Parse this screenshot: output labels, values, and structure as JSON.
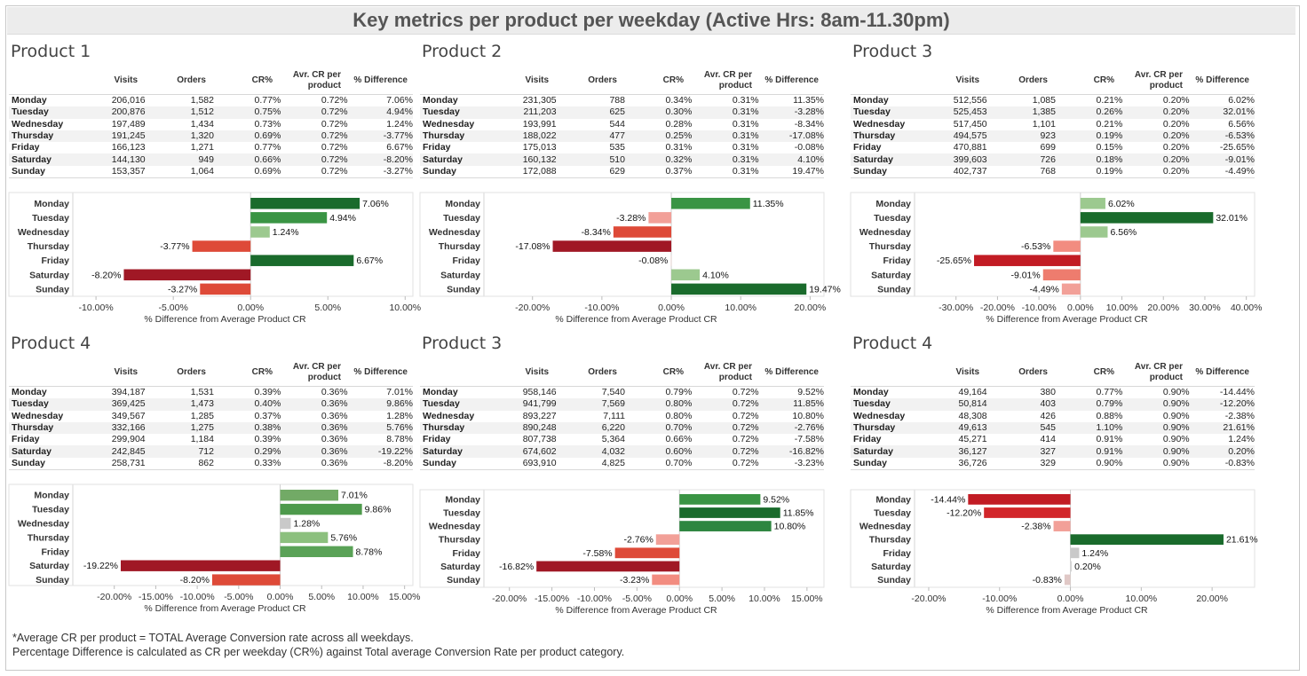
{
  "title": "Key metrics per product per weekday (Active Hrs: 8am-11.30pm)",
  "headers": {
    "visits": "Visits",
    "orders": "Orders",
    "cr": "CR%",
    "avg_cr_1": "Avr. CR per",
    "avg_cr_2": "product",
    "diff": "% Difference"
  },
  "axis_label": "% Difference from Average Product CR",
  "colors": {
    "dark_green": "#1a6b2c",
    "green": "#3a9444",
    "light_green": "#9cc98f",
    "dark_red": "#a01825",
    "red": "#de4a38",
    "light_red": "#f2a098",
    "grey": "#c9c9c9"
  },
  "footnotes": [
    "*Average CR per product = TOTAL Average Conversion rate across all weekdays.",
    "Percentage Difference is calculated as CR per weekday (CR%) against Total average Conversion Rate per product category."
  ],
  "panels": [
    {
      "name": "Product 1",
      "rows": [
        {
          "day": "Monday",
          "visits": "206,016",
          "orders": "1,582",
          "cr": "0.77%",
          "avg": "0.72%",
          "diff": "7.06%"
        },
        {
          "day": "Tuesday",
          "visits": "200,876",
          "orders": "1,512",
          "cr": "0.75%",
          "avg": "0.72%",
          "diff": "4.94%"
        },
        {
          "day": "Wednesday",
          "visits": "197,489",
          "orders": "1,434",
          "cr": "0.73%",
          "avg": "0.72%",
          "diff": "1.24%"
        },
        {
          "day": "Thursday",
          "visits": "191,245",
          "orders": "1,320",
          "cr": "0.69%",
          "avg": "0.72%",
          "diff": "-3.77%"
        },
        {
          "day": "Friday",
          "visits": "166,123",
          "orders": "1,271",
          "cr": "0.77%",
          "avg": "0.72%",
          "diff": "6.67%"
        },
        {
          "day": "Saturday",
          "visits": "144,130",
          "orders": "949",
          "cr": "0.66%",
          "avg": "0.72%",
          "diff": "-8.20%"
        },
        {
          "day": "Sunday",
          "visits": "153,357",
          "orders": "1,064",
          "cr": "0.69%",
          "avg": "0.72%",
          "diff": "-3.27%"
        }
      ]
    },
    {
      "name": "Product 2",
      "rows": [
        {
          "day": "Monday",
          "visits": "231,305",
          "orders": "788",
          "cr": "0.34%",
          "avg": "0.31%",
          "diff": "11.35%"
        },
        {
          "day": "Tuesday",
          "visits": "211,203",
          "orders": "625",
          "cr": "0.30%",
          "avg": "0.31%",
          "diff": "-3.28%"
        },
        {
          "day": "Wednesday",
          "visits": "193,991",
          "orders": "544",
          "cr": "0.28%",
          "avg": "0.31%",
          "diff": "-8.34%"
        },
        {
          "day": "Thursday",
          "visits": "188,022",
          "orders": "477",
          "cr": "0.25%",
          "avg": "0.31%",
          "diff": "-17.08%"
        },
        {
          "day": "Friday",
          "visits": "175,013",
          "orders": "535",
          "cr": "0.31%",
          "avg": "0.31%",
          "diff": "-0.08%"
        },
        {
          "day": "Saturday",
          "visits": "160,132",
          "orders": "510",
          "cr": "0.32%",
          "avg": "0.31%",
          "diff": "4.10%"
        },
        {
          "day": "Sunday",
          "visits": "172,088",
          "orders": "629",
          "cr": "0.37%",
          "avg": "0.31%",
          "diff": "19.47%"
        }
      ]
    },
    {
      "name": "Product 3",
      "rows": [
        {
          "day": "Monday",
          "visits": "512,556",
          "orders": "1,085",
          "cr": "0.21%",
          "avg": "0.20%",
          "diff": "6.02%"
        },
        {
          "day": "Tuesday",
          "visits": "525,453",
          "orders": "1,385",
          "cr": "0.26%",
          "avg": "0.20%",
          "diff": "32.01%"
        },
        {
          "day": "Wednesday",
          "visits": "517,450",
          "orders": "1,101",
          "cr": "0.21%",
          "avg": "0.20%",
          "diff": "6.56%"
        },
        {
          "day": "Thursday",
          "visits": "494,575",
          "orders": "923",
          "cr": "0.19%",
          "avg": "0.20%",
          "diff": "-6.53%"
        },
        {
          "day": "Friday",
          "visits": "470,881",
          "orders": "699",
          "cr": "0.15%",
          "avg": "0.20%",
          "diff": "-25.65%"
        },
        {
          "day": "Saturday",
          "visits": "399,603",
          "orders": "726",
          "cr": "0.18%",
          "avg": "0.20%",
          "diff": "-9.01%"
        },
        {
          "day": "Sunday",
          "visits": "402,737",
          "orders": "768",
          "cr": "0.19%",
          "avg": "0.20%",
          "diff": "-4.49%"
        }
      ]
    },
    {
      "name": "Product 4",
      "rows": [
        {
          "day": "Monday",
          "visits": "394,187",
          "orders": "1,531",
          "cr": "0.39%",
          "avg": "0.36%",
          "diff": "7.01%"
        },
        {
          "day": "Tuesday",
          "visits": "369,425",
          "orders": "1,473",
          "cr": "0.40%",
          "avg": "0.36%",
          "diff": "9.86%"
        },
        {
          "day": "Wednesday",
          "visits": "349,567",
          "orders": "1,285",
          "cr": "0.37%",
          "avg": "0.36%",
          "diff": "1.28%"
        },
        {
          "day": "Thursday",
          "visits": "332,166",
          "orders": "1,275",
          "cr": "0.38%",
          "avg": "0.36%",
          "diff": "5.76%"
        },
        {
          "day": "Friday",
          "visits": "299,904",
          "orders": "1,184",
          "cr": "0.39%",
          "avg": "0.36%",
          "diff": "8.78%"
        },
        {
          "day": "Saturday",
          "visits": "242,845",
          "orders": "712",
          "cr": "0.29%",
          "avg": "0.36%",
          "diff": "-19.22%"
        },
        {
          "day": "Sunday",
          "visits": "258,731",
          "orders": "862",
          "cr": "0.33%",
          "avg": "0.36%",
          "diff": "-8.20%"
        }
      ]
    },
    {
      "name": "Product 3",
      "rows": [
        {
          "day": "Monday",
          "visits": "958,146",
          "orders": "7,540",
          "cr": "0.79%",
          "avg": "0.72%",
          "diff": "9.52%"
        },
        {
          "day": "Tuesday",
          "visits": "941,799",
          "orders": "7,569",
          "cr": "0.80%",
          "avg": "0.72%",
          "diff": "11.85%"
        },
        {
          "day": "Wednesday",
          "visits": "893,227",
          "orders": "7,111",
          "cr": "0.80%",
          "avg": "0.72%",
          "diff": "10.80%"
        },
        {
          "day": "Thursday",
          "visits": "890,248",
          "orders": "6,220",
          "cr": "0.70%",
          "avg": "0.72%",
          "diff": "-2.76%"
        },
        {
          "day": "Friday",
          "visits": "807,738",
          "orders": "5,364",
          "cr": "0.66%",
          "avg": "0.72%",
          "diff": "-7.58%"
        },
        {
          "day": "Saturday",
          "visits": "674,602",
          "orders": "4,032",
          "cr": "0.60%",
          "avg": "0.72%",
          "diff": "-16.82%"
        },
        {
          "day": "Sunday",
          "visits": "693,910",
          "orders": "4,825",
          "cr": "0.70%",
          "avg": "0.72%",
          "diff": "-3.23%"
        }
      ]
    },
    {
      "name": "Product 4",
      "rows": [
        {
          "day": "Monday",
          "visits": "49,164",
          "orders": "380",
          "cr": "0.77%",
          "avg": "0.90%",
          "diff": "-14.44%"
        },
        {
          "day": "Tuesday",
          "visits": "50,814",
          "orders": "403",
          "cr": "0.79%",
          "avg": "0.90%",
          "diff": "-12.20%"
        },
        {
          "day": "Wednesday",
          "visits": "48,308",
          "orders": "426",
          "cr": "0.88%",
          "avg": "0.90%",
          "diff": "-2.38%"
        },
        {
          "day": "Thursday",
          "visits": "49,613",
          "orders": "545",
          "cr": "1.10%",
          "avg": "0.90%",
          "diff": "21.61%"
        },
        {
          "day": "Friday",
          "visits": "45,271",
          "orders": "414",
          "cr": "0.91%",
          "avg": "0.90%",
          "diff": "1.24%"
        },
        {
          "day": "Saturday",
          "visits": "36,127",
          "orders": "327",
          "cr": "0.91%",
          "avg": "0.90%",
          "diff": "0.20%"
        },
        {
          "day": "Sunday",
          "visits": "36,726",
          "orders": "329",
          "cr": "0.90%",
          "avg": "0.90%",
          "diff": "-0.83%"
        }
      ]
    }
  ],
  "chart_data": [
    {
      "type": "bar",
      "orientation": "horizontal",
      "title": "Product 1",
      "xlabel": "% Difference from Average Product CR",
      "ylabel": "",
      "categories": [
        "Monday",
        "Tuesday",
        "Wednesday",
        "Thursday",
        "Friday",
        "Saturday",
        "Sunday"
      ],
      "values": [
        7.06,
        4.94,
        1.24,
        -3.77,
        6.67,
        -8.2,
        -3.27
      ],
      "xlim": [
        -11.5,
        10.5
      ],
      "xticks": [
        -10,
        -5,
        0,
        5,
        10
      ],
      "tick_labels": [
        "-10.00%",
        "-5.00%",
        "0.00%",
        "5.00%",
        "10.00%"
      ],
      "value_labels": [
        "7.06%",
        "4.94%",
        "1.24%",
        "-3.77%",
        "6.67%",
        "-8.20%",
        "-3.27%"
      ],
      "bar_colors": [
        "#1a6b2c",
        "#3a9444",
        "#9cc98f",
        "#de4a38",
        "#1a6b2c",
        "#a01825",
        "#de4a38"
      ]
    },
    {
      "type": "bar",
      "orientation": "horizontal",
      "title": "Product 2",
      "xlabel": "% Difference from Average Product CR",
      "ylabel": "",
      "categories": [
        "Monday",
        "Tuesday",
        "Wednesday",
        "Thursday",
        "Friday",
        "Saturday",
        "Sunday"
      ],
      "values": [
        11.35,
        -3.28,
        -8.34,
        -17.08,
        -0.08,
        4.1,
        19.47
      ],
      "xlim": [
        -27,
        22
      ],
      "xticks": [
        -20,
        -10,
        0,
        10,
        20
      ],
      "tick_labels": [
        "-20.00%",
        "-10.00%",
        "0.00%",
        "10.00%",
        "20.00%"
      ],
      "value_labels": [
        "11.35%",
        "-3.28%",
        "-8.34%",
        "-17.08%",
        "-0.08%",
        "4.10%",
        "19.47%"
      ],
      "bar_colors": [
        "#3a9444",
        "#f2a098",
        "#de4a38",
        "#a01825",
        "#e8d6d2",
        "#9cc98f",
        "#1a6b2c"
      ]
    },
    {
      "type": "bar",
      "orientation": "horizontal",
      "title": "Product 3",
      "xlabel": "% Difference from Average Product CR",
      "ylabel": "",
      "categories": [
        "Monday",
        "Tuesday",
        "Wednesday",
        "Thursday",
        "Friday",
        "Saturday",
        "Sunday"
      ],
      "values": [
        6.02,
        32.01,
        6.56,
        -6.53,
        -25.65,
        -9.01,
        -4.49
      ],
      "xlim": [
        -40,
        42
      ],
      "xticks": [
        -30,
        -20,
        -10,
        0,
        10,
        20,
        30,
        40
      ],
      "tick_labels": [
        "-30.00%",
        "-20.00%",
        "-10.00%",
        "0.00%",
        "10.00%",
        "20.00%",
        "30.00%",
        "40.00%"
      ],
      "value_labels": [
        "6.02%",
        "32.01%",
        "6.56%",
        "-6.53%",
        "-25.65%",
        "-9.01%",
        "-4.49%"
      ],
      "bar_colors": [
        "#9cc98f",
        "#1a6b2c",
        "#9cc98f",
        "#f28c80",
        "#c21c24",
        "#ee7c6e",
        "#f2a098"
      ]
    },
    {
      "type": "bar",
      "orientation": "horizontal",
      "title": "Product 4",
      "xlabel": "% Difference from Average Product CR",
      "ylabel": "",
      "categories": [
        "Monday",
        "Tuesday",
        "Wednesday",
        "Thursday",
        "Friday",
        "Saturday",
        "Sunday"
      ],
      "values": [
        7.01,
        9.86,
        1.28,
        5.76,
        8.78,
        -19.22,
        -8.2
      ],
      "xlim": [
        -25,
        16
      ],
      "xticks": [
        -20,
        -15,
        -10,
        -5,
        0,
        5,
        10,
        15
      ],
      "tick_labels": [
        "-20.00%",
        "-15.00%",
        "-10.00%",
        "-5.00%",
        "0.00%",
        "5.00%",
        "10.00%",
        "15.00%"
      ],
      "value_labels": [
        "7.01%",
        "9.86%",
        "1.28%",
        "5.76%",
        "8.78%",
        "-19.22%",
        "-8.20%"
      ],
      "bar_colors": [
        "#72aa66",
        "#4e9a4c",
        "#c9c9c9",
        "#8cc07e",
        "#5aa257",
        "#a01825",
        "#de4a38"
      ]
    },
    {
      "type": "bar",
      "orientation": "horizontal",
      "title": "Product 3",
      "xlabel": "% Difference from Average Product CR",
      "ylabel": "",
      "categories": [
        "Monday",
        "Tuesday",
        "Wednesday",
        "Thursday",
        "Friday",
        "Saturday",
        "Sunday"
      ],
      "values": [
        9.52,
        11.85,
        10.8,
        -2.76,
        -7.58,
        -16.82,
        -3.23
      ],
      "xlim": [
        -23,
        17
      ],
      "xticks": [
        -20,
        -15,
        -10,
        -5,
        0,
        5,
        10,
        15
      ],
      "tick_labels": [
        "-20.00%",
        "-15.00%",
        "-10.00%",
        "-5.00%",
        "0.00%",
        "5.00%",
        "10.00%",
        "15.00%"
      ],
      "value_labels": [
        "9.52%",
        "11.85%",
        "10.80%",
        "-2.76%",
        "-7.58%",
        "-16.82%",
        "-3.23%"
      ],
      "bar_colors": [
        "#3a9444",
        "#1a6b2c",
        "#2e8640",
        "#f2a098",
        "#de4a38",
        "#a01825",
        "#f28c80"
      ]
    },
    {
      "type": "bar",
      "orientation": "horizontal",
      "title": "Product 4",
      "xlabel": "% Difference from Average Product CR",
      "ylabel": "",
      "categories": [
        "Monday",
        "Tuesday",
        "Wednesday",
        "Thursday",
        "Friday",
        "Saturday",
        "Sunday"
      ],
      "values": [
        -14.44,
        -12.2,
        -2.38,
        21.61,
        1.24,
        0.2,
        -0.83
      ],
      "xlim": [
        -22,
        26
      ],
      "xticks": [
        -20,
        -10,
        0,
        10,
        20
      ],
      "tick_labels": [
        "-20.00%",
        "-10.00%",
        "0.00%",
        "10.00%",
        "20.00%"
      ],
      "value_labels": [
        "-14.44%",
        "-12.20%",
        "-2.38%",
        "21.61%",
        "1.24%",
        "0.20%",
        "-0.83%"
      ],
      "bar_colors": [
        "#c21c24",
        "#d2262a",
        "#f2a098",
        "#1a6b2c",
        "#c9c9c9",
        "#d6d6d6",
        "#e0c8c6"
      ]
    }
  ]
}
